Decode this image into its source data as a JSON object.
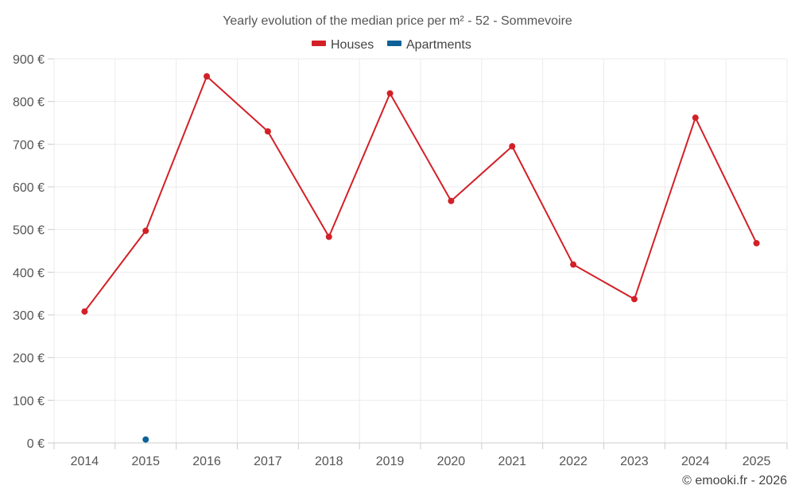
{
  "chart_data": {
    "type": "line",
    "title": "Yearly evolution of the median price per m² - 52 - Sommevoire",
    "categories": [
      "2014",
      "2015",
      "2016",
      "2017",
      "2018",
      "2019",
      "2020",
      "2021",
      "2022",
      "2023",
      "2024",
      "2025"
    ],
    "series": [
      {
        "name": "Houses",
        "color": "#d32027",
        "values": [
          308,
          497,
          859,
          730,
          483,
          819,
          567,
          695,
          418,
          337,
          762,
          468
        ]
      },
      {
        "name": "Apartments",
        "color": "#0e6198",
        "values": [
          null,
          8,
          null,
          null,
          null,
          null,
          null,
          null,
          null,
          null,
          null,
          null
        ]
      }
    ],
    "y_ticks": [
      "0 €",
      "100 €",
      "200 €",
      "300 €",
      "400 €",
      "500 €",
      "600 €",
      "700 €",
      "800 €",
      "900 €"
    ],
    "ylim": [
      0,
      900
    ],
    "grid": true,
    "legend_position": "top-center"
  },
  "credit": "© emooki.fr - 2026"
}
